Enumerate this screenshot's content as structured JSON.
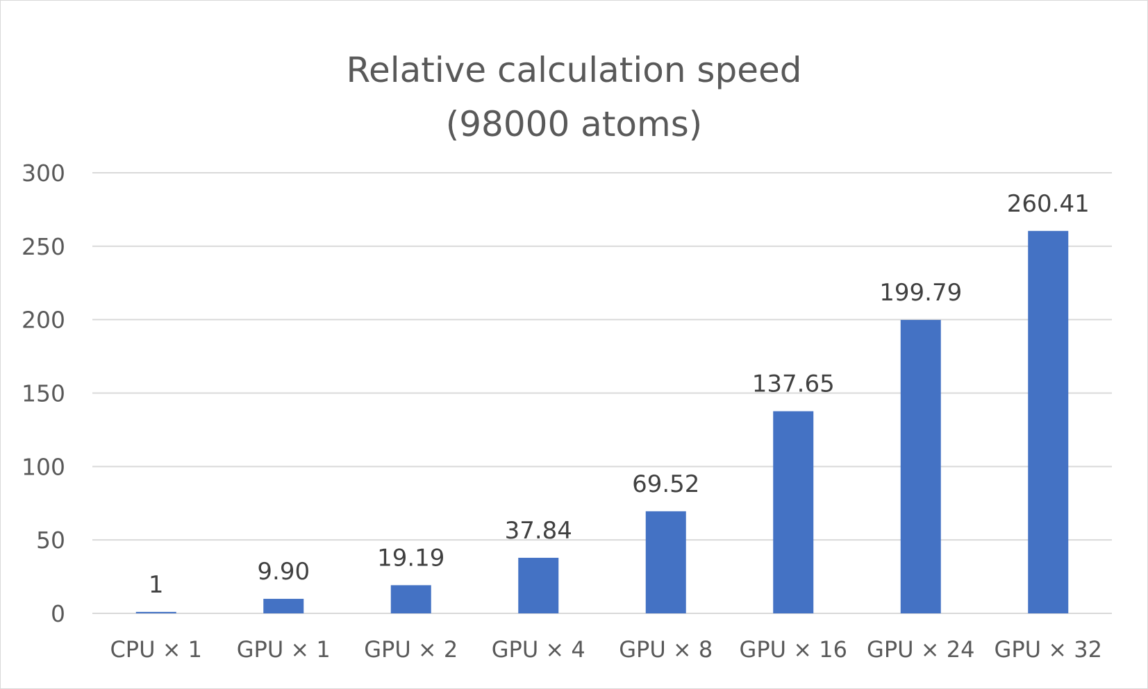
{
  "chart_data": {
    "type": "bar",
    "title_lines": [
      "Relative calculation speed",
      "(98000 atoms)"
    ],
    "categories": [
      "CPU × 1",
      "GPU × 1",
      "GPU × 2",
      "GPU × 4",
      "GPU × 8",
      "GPU × 16",
      "GPU × 24",
      "GPU × 32"
    ],
    "values": [
      1,
      9.9,
      19.19,
      37.84,
      69.52,
      137.65,
      199.79,
      260.41
    ],
    "value_labels": [
      "1",
      "9.90",
      "19.19",
      "37.84",
      "69.52",
      "137.65",
      "199.79",
      "260.41"
    ],
    "yticks": [
      "0",
      "50",
      "100",
      "150",
      "200",
      "250",
      "300"
    ],
    "ylim": [
      0,
      300
    ],
    "grid": true,
    "legend": "none",
    "colors": {
      "bar": "#4472c4",
      "grid": "#d9d9d9",
      "text": "#595959",
      "label": "#404040"
    }
  }
}
